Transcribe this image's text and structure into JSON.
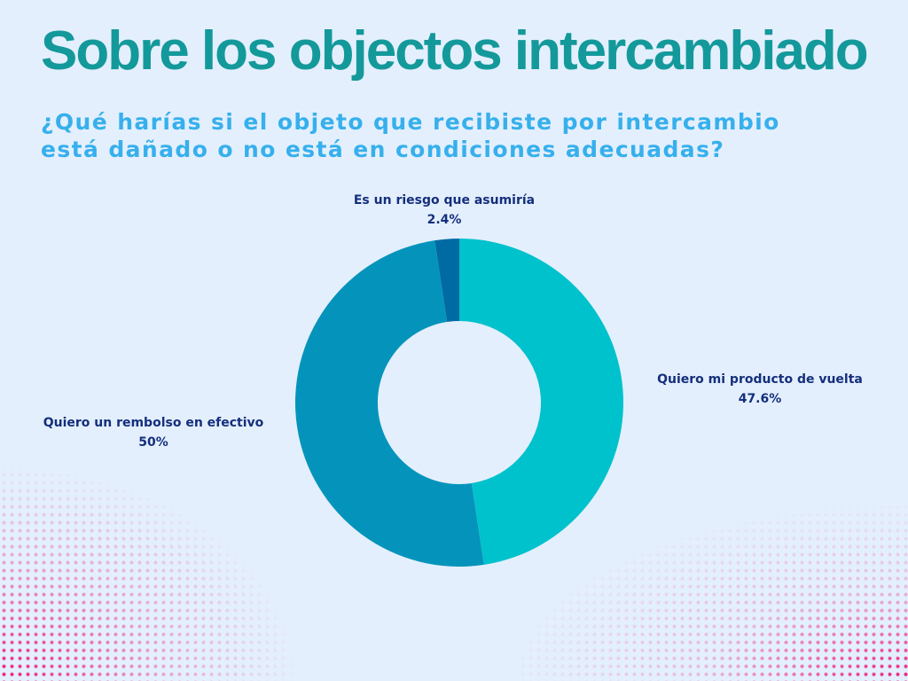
{
  "header": {
    "title": "Sobre los objectos intercambiado",
    "subtitle": "¿Qué harías si el objeto que recibiste por intercambio está dañado o no está en condiciones adecuadas?"
  },
  "colors": {
    "background": "#e4effd",
    "title": "#14999b",
    "subtitle": "#36b0ec",
    "label": "#142f7c",
    "dots": "#ee1f7a"
  },
  "chart_data": {
    "type": "pie",
    "style": "donut",
    "title": "",
    "slices": [
      {
        "label": "Quiero mi producto de vuelta",
        "value": 47.6,
        "display": "47.6%",
        "color": "#00c2cc"
      },
      {
        "label": "Quiero un rembolso en efectivo",
        "value": 50,
        "display": "50%",
        "color": "#0494bb"
      },
      {
        "label": "Es un riesgo que asumiría",
        "value": 2.4,
        "display": "2.4%",
        "color": "#006aa3"
      }
    ]
  }
}
